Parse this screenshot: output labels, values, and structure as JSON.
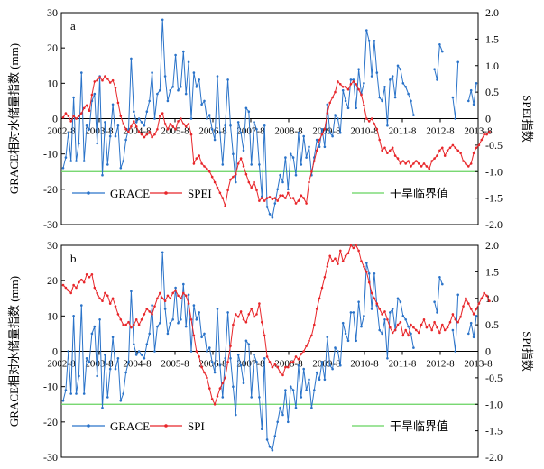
{
  "chart_data": [
    {
      "type": "line",
      "panel_label": "a",
      "x_tick_labels": [
        "2002-8",
        "2003-8",
        "2004-8",
        "2005-8",
        "2006-8",
        "2007-8",
        "2008-8",
        "2009-8",
        "2010-8",
        "2011-8",
        "2012-8",
        "2013-8"
      ],
      "ylabel_left": "GRACE相对水储量指数 (mm)",
      "ylabel_right": "SPEI指数",
      "ylim_left": [
        -30,
        30
      ],
      "ylim_right": [
        -2.0,
        2.0
      ],
      "yticks_left": [
        "30",
        "20",
        "10",
        "0",
        "-10",
        "-20",
        "-30"
      ],
      "yticks_right": [
        "2.0",
        "1.5",
        "1.0",
        "0.5",
        "0",
        "-0.5",
        "-1.0",
        "-1.5",
        "-2.0"
      ],
      "legend": [
        {
          "name": "GRACE",
          "color": "#2a73c9"
        },
        {
          "name": "SPEI",
          "color": "#e8262a"
        },
        {
          "name": "干旱临界值",
          "color": "#66d35f"
        }
      ],
      "threshold": -1.0,
      "series": [
        {
          "name": "GRACE",
          "color": "#2a73c9",
          "axis": "left",
          "values": [
            -14,
            -11,
            -4,
            -12,
            6,
            -12,
            -7,
            13,
            -12,
            -2,
            -3,
            5,
            7,
            -7,
            12,
            -16,
            -1,
            -13,
            -5,
            4,
            -5,
            -2,
            -14,
            -12,
            -6,
            -3,
            17,
            2,
            -1,
            0,
            -1,
            -2,
            2,
            5,
            13,
            0,
            7,
            8,
            28,
            12,
            5,
            8,
            9,
            18,
            8,
            9,
            19,
            7,
            16,
            0,
            13,
            9,
            11,
            4,
            5,
            0,
            1,
            -3,
            -6,
            12,
            -4,
            -13,
            -2,
            11,
            -2,
            -10,
            -18,
            -1,
            -4,
            -9,
            3,
            2,
            -13,
            -1,
            -3,
            -13,
            -22,
            -2,
            -25,
            -27,
            -28,
            -24,
            -20,
            -16,
            -18,
            -11,
            -20,
            -10,
            -11,
            -16,
            -4,
            -13,
            -5,
            -11,
            -8,
            -16,
            -11,
            -6,
            -8,
            -3,
            -8,
            4,
            -4,
            -5,
            1,
            0,
            -4,
            8,
            5,
            3,
            11,
            11,
            3,
            14,
            7,
            10,
            25,
            22,
            12,
            22,
            13,
            6,
            5,
            9,
            -2,
            11,
            12,
            6,
            15,
            14,
            10,
            9,
            7,
            5,
            1,
            null,
            null,
            null,
            null,
            null,
            null,
            null,
            14,
            11,
            21,
            19,
            null,
            null,
            null,
            6,
            0,
            16,
            null,
            null,
            null,
            5,
            8,
            4,
            10
          ]
        },
        {
          "name": "SPEI",
          "color": "#e8262a",
          "axis": "right",
          "values": [
            0.02,
            0.1,
            0.05,
            -0.05,
            0.05,
            0.0,
            0.05,
            0.1,
            0.2,
            0.25,
            0.15,
            0.45,
            0.7,
            0.72,
            0.78,
            0.72,
            0.8,
            0.75,
            0.68,
            0.72,
            0.58,
            0.3,
            0.05,
            -0.1,
            -0.2,
            -0.25,
            -0.15,
            -0.05,
            -0.15,
            -0.25,
            -0.3,
            -0.35,
            -0.3,
            -0.25,
            -0.35,
            -0.3,
            -0.2,
            0.05,
            0.1,
            -0.1,
            -0.2,
            -0.1,
            -0.15,
            -0.2,
            -0.05,
            0.0,
            -0.1,
            -0.15,
            -0.1,
            -0.3,
            -0.85,
            -0.75,
            -0.7,
            -0.85,
            -0.9,
            -0.95,
            -1.0,
            -1.1,
            -1.2,
            -1.3,
            -1.4,
            -1.5,
            -1.65,
            -1.35,
            -1.15,
            -1.1,
            -1.05,
            -0.85,
            -0.75,
            -0.9,
            -1.05,
            -1.2,
            -1.3,
            -1.2,
            -1.35,
            -1.55,
            -1.5,
            -1.55,
            -1.5,
            -1.48,
            -1.52,
            -1.5,
            -1.55,
            -1.45,
            -1.45,
            -1.5,
            -1.4,
            -1.5,
            -1.5,
            -1.6,
            -1.55,
            -1.45,
            -1.5,
            -1.6,
            -1.2,
            -1.0,
            -0.8,
            -0.6,
            -0.4,
            -0.3,
            -0.2,
            0.1,
            0.3,
            0.4,
            0.5,
            0.7,
            0.65,
            0.6,
            0.6,
            0.55,
            0.65,
            0.7,
            0.65,
            0.55,
            0.45,
            0.25,
            0.0,
            -0.05,
            0.0,
            -0.1,
            -0.2,
            -0.4,
            -0.6,
            -0.55,
            -0.65,
            -0.6,
            -0.55,
            -0.7,
            -0.75,
            -0.85,
            -0.8,
            -0.85,
            -0.8,
            -0.9,
            -0.85,
            -0.8,
            -0.85,
            -0.9,
            -0.85,
            -0.9,
            -0.95,
            -0.8,
            -0.75,
            -0.7,
            -0.6,
            -0.55,
            -0.7,
            -0.6,
            -0.55,
            -0.5,
            -0.55,
            -0.6,
            -0.65,
            -0.8,
            -0.85,
            -0.9,
            -0.85,
            -0.65,
            -0.55,
            -0.5,
            -0.4,
            -0.3,
            -0.3,
            -0.25
          ]
        }
      ]
    },
    {
      "type": "line",
      "panel_label": "b",
      "x_tick_labels": [
        "2002-8",
        "2003-8",
        "2004-8",
        "2005-8",
        "2006-8",
        "2007-8",
        "2008-8",
        "2009-8",
        "2010-8",
        "2011-8",
        "2012-8",
        "2013-8"
      ],
      "ylabel_left": "GRACE相对水储量指数 (mm)",
      "ylabel_right": "SPI指数",
      "ylim_left": [
        -30,
        30
      ],
      "ylim_right": [
        -2.0,
        2.0
      ],
      "yticks_left": [
        "30",
        "20",
        "10",
        "0",
        "-10",
        "-20",
        "-30"
      ],
      "yticks_right": [
        "2.0",
        "1.5",
        "1.0",
        "0.5",
        "0",
        "-0.5",
        "-1.0",
        "-1.5",
        "-2.0"
      ],
      "legend": [
        {
          "name": "GRACE",
          "color": "#2a73c9"
        },
        {
          "name": "SPI",
          "color": "#e8262a"
        },
        {
          "name": "干旱临界值",
          "color": "#66d35f"
        }
      ],
      "threshold": -1.0,
      "series": [
        {
          "name": "GRACE",
          "color": "#2a73c9",
          "axis": "left",
          "values": [
            -14,
            -11,
            0,
            -12,
            10,
            -12,
            -7,
            13,
            -12,
            -2,
            -3,
            5,
            7,
            -7,
            9,
            -16,
            -1,
            -13,
            -5,
            4,
            -5,
            -2,
            -14,
            -12,
            -6,
            -3,
            17,
            2,
            -1,
            0,
            -1,
            -2,
            2,
            5,
            13,
            0,
            7,
            8,
            28,
            12,
            5,
            8,
            9,
            18,
            8,
            9,
            19,
            7,
            16,
            0,
            13,
            9,
            11,
            4,
            5,
            0,
            1,
            -3,
            -6,
            12,
            -4,
            -13,
            -2,
            11,
            -2,
            -10,
            -18,
            -1,
            -4,
            -9,
            3,
            2,
            -13,
            -1,
            -3,
            -13,
            -22,
            -2,
            -25,
            -27,
            -28,
            -24,
            -20,
            -16,
            -18,
            -11,
            -20,
            -10,
            -11,
            -16,
            -4,
            -13,
            -5,
            -11,
            -8,
            -16,
            -11,
            -6,
            -8,
            -3,
            -8,
            4,
            -4,
            -5,
            1,
            0,
            -4,
            8,
            5,
            3,
            11,
            11,
            3,
            14,
            7,
            10,
            25,
            22,
            12,
            22,
            13,
            6,
            5,
            9,
            -2,
            11,
            12,
            6,
            15,
            14,
            10,
            9,
            7,
            5,
            1,
            null,
            null,
            null,
            null,
            null,
            null,
            null,
            14,
            11,
            21,
            19,
            null,
            null,
            null,
            6,
            0,
            16,
            null,
            null,
            null,
            5,
            8,
            4,
            10
          ]
        },
        {
          "name": "SPI",
          "color": "#e8262a",
          "axis": "right",
          "values": [
            1.25,
            1.2,
            1.15,
            1.1,
            1.25,
            1.2,
            1.3,
            1.35,
            1.3,
            1.45,
            1.4,
            1.45,
            1.2,
            1.1,
            1.0,
            0.95,
            1.1,
            1.05,
            0.9,
            1.0,
            0.85,
            0.7,
            0.6,
            0.5,
            0.5,
            0.55,
            0.45,
            0.5,
            0.6,
            0.5,
            0.6,
            0.7,
            0.8,
            0.75,
            0.7,
            0.85,
            1.0,
            1.1,
            1.0,
            0.95,
            1.05,
            1.0,
            1.1,
            1.15,
            1.05,
            1.0,
            1.1,
            1.05,
            0.9,
            0.6,
            0.3,
            0.0,
            -0.1,
            -0.3,
            -0.4,
            -0.5,
            -0.7,
            -0.9,
            -1.0,
            -0.85,
            -0.7,
            -0.6,
            -0.5,
            -0.2,
            0.1,
            0.5,
            0.7,
            0.65,
            0.75,
            0.6,
            0.55,
            0.7,
            0.8,
            0.65,
            0.7,
            0.9,
            0.55,
            0.3,
            -0.1,
            -0.2,
            -0.3,
            -0.25,
            -0.3,
            -0.4,
            -0.45,
            -0.3,
            -0.3,
            -0.2,
            -0.2,
            -0.1,
            -0.15,
            -0.05,
            0.0,
            0.1,
            0.2,
            0.3,
            0.5,
            0.8,
            1.0,
            1.2,
            1.4,
            1.6,
            1.8,
            1.7,
            1.75,
            1.65,
            1.9,
            1.7,
            1.8,
            1.85,
            2.0,
            1.95,
            2.0,
            1.9,
            1.7,
            1.6,
            1.5,
            1.3,
            1.1,
            1.0,
            0.9,
            0.8,
            0.7,
            0.75,
            0.6,
            0.45,
            0.35,
            0.4,
            0.5,
            0.55,
            0.3,
            0.4,
            0.3,
            0.5,
            0.45,
            0.4,
            0.35,
            0.5,
            0.6,
            0.45,
            0.5,
            0.4,
            0.55,
            0.45,
            0.35,
            0.5,
            0.4,
            0.45,
            0.55,
            0.7,
            0.6,
            0.55,
            0.65,
            0.85,
            1.0,
            0.9,
            0.8,
            0.7,
            0.8,
            0.9,
            1.0,
            1.1,
            1.05,
            0.95
          ]
        }
      ]
    }
  ]
}
